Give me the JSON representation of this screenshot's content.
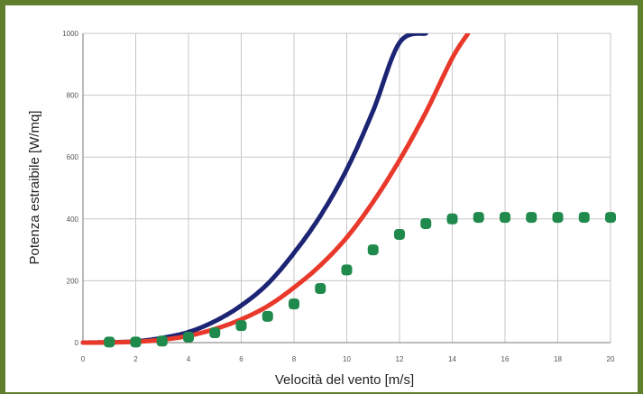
{
  "chart_data": {
    "type": "line",
    "xlabel": "Velocità del vento [m/s]",
    "ylabel": "Potenza estraibile [W/mq]",
    "xlim": [
      0,
      20
    ],
    "ylim": [
      0,
      1000
    ],
    "x_ticks": [
      "0",
      "2",
      "4",
      "6",
      "8",
      "10",
      "12",
      "14",
      "16",
      "18",
      "20"
    ],
    "y_ticks": [
      "0",
      "200",
      "400",
      "600",
      "800",
      "1000"
    ],
    "grid": true,
    "legend": "none",
    "series": [
      {
        "style": "line",
        "color": "#1c2474",
        "x": [
          0,
          1,
          2,
          3,
          4,
          5,
          6,
          7,
          8,
          9,
          10,
          11,
          12,
          13
        ],
        "values": [
          0,
          1,
          4,
          15,
          34,
          69,
          120,
          190,
          290,
          410,
          560,
          750,
          970,
          1000
        ]
      },
      {
        "style": "line",
        "color": "#e8392b",
        "x": [
          0,
          1,
          2,
          3,
          4,
          5,
          6,
          7,
          8,
          9,
          10,
          11,
          12,
          13,
          14,
          14.6
        ],
        "values": [
          0,
          0.5,
          3,
          9,
          22,
          44,
          75,
          118,
          178,
          250,
          340,
          455,
          590,
          745,
          920,
          1000
        ]
      },
      {
        "style": "markers",
        "color": "#1f8a4c",
        "x": [
          1,
          2,
          3,
          4,
          5,
          6,
          7,
          8,
          9,
          10,
          11,
          12,
          13,
          14,
          15,
          16,
          17,
          18,
          19,
          20
        ],
        "values": [
          2,
          2,
          5,
          18,
          32,
          55,
          85,
          125,
          175,
          235,
          300,
          350,
          385,
          400,
          405,
          405,
          405,
          405,
          405,
          405
        ]
      }
    ]
  }
}
